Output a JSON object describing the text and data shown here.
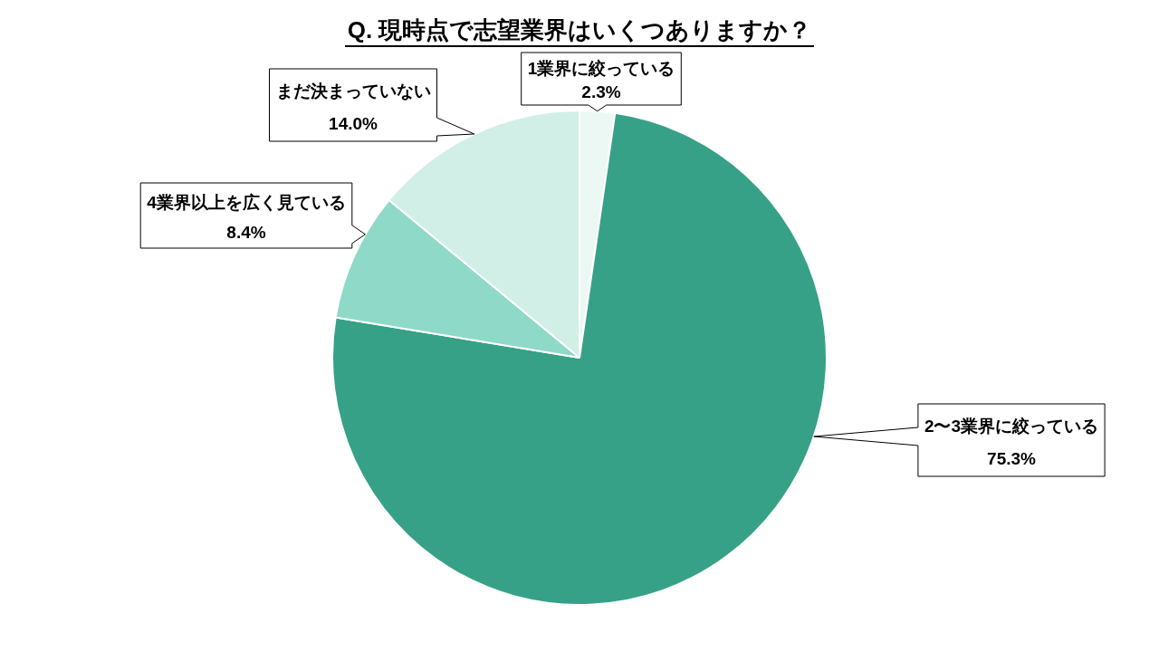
{
  "chart_data": {
    "type": "pie",
    "title": "Q. 現時点で志望業界はいくつありますか？",
    "categories": [
      "1業界に絞っている",
      "2〜3業界に絞っている",
      "4業界以上を広く見ている",
      "まだ決まっていない"
    ],
    "values": [
      2.3,
      75.3,
      8.4,
      14.0
    ],
    "colors": [
      "#ecf8f4",
      "#36a187",
      "#8fd9c8",
      "#d1efe7"
    ],
    "value_labels": [
      "2.3%",
      "75.3%",
      "8.4%",
      "14.0%"
    ]
  }
}
